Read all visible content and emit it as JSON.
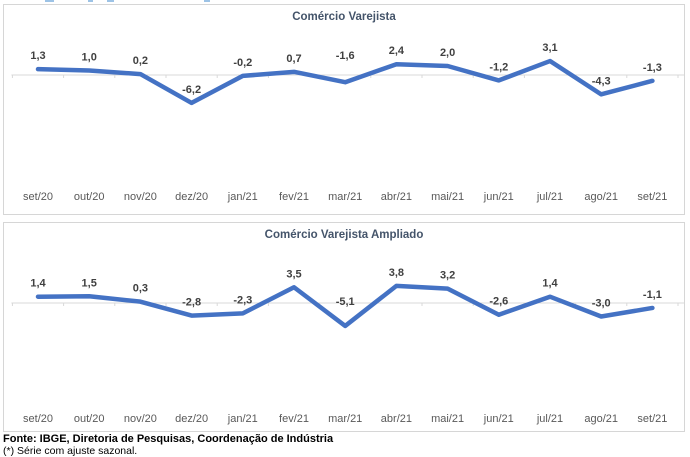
{
  "page": {
    "footer": {
      "source": "Fonte: IBGE, Diretoria de Pesquisas, Coordenação de Indústria",
      "note": "(*) Série com ajuste sazonal."
    }
  },
  "chart_data": [
    {
      "type": "line",
      "title": "Comércio Varejista",
      "categories": [
        "set/20",
        "out/20",
        "nov/20",
        "dez/20",
        "jan/21",
        "fev/21",
        "mar/21",
        "abr/21",
        "mai/21",
        "jun/21",
        "jul/21",
        "ago/21",
        "set/21"
      ],
      "values": [
        1.3,
        1.0,
        0.2,
        -6.2,
        -0.2,
        0.7,
        -1.6,
        2.4,
        2.0,
        -1.2,
        3.1,
        -4.3,
        -1.3
      ],
      "value_labels": [
        "1,3",
        "1,0",
        "0,2",
        "-6,2",
        "-0,2",
        "0,7",
        "-1,6",
        "2,4",
        "2,0",
        "-1,2",
        "3,1",
        "-4,3",
        "-1,3"
      ],
      "ylim": [
        -8,
        4
      ],
      "grid": false,
      "legend": "none",
      "data_labels": "above",
      "label_dy": [
        0,
        0,
        0,
        0,
        0,
        0,
        -13,
        0,
        0,
        0,
        0,
        0,
        0
      ],
      "line_color": "#4472c4",
      "axis_color": "#d9d9d9",
      "label_color": "#404040",
      "tick_label_color": "#595959",
      "title_color": "#44546a"
    },
    {
      "type": "line",
      "title": "Comércio Varejista Ampliado",
      "categories": [
        "set/20",
        "out/20",
        "nov/20",
        "dez/20",
        "jan/21",
        "fev/21",
        "mar/21",
        "abr/21",
        "mai/21",
        "jun/21",
        "jul/21",
        "ago/21",
        "set/21"
      ],
      "values": [
        1.4,
        1.5,
        0.3,
        -2.8,
        -2.3,
        3.5,
        -5.1,
        3.8,
        3.2,
        -2.6,
        1.4,
        -3.0,
        -1.1
      ],
      "value_labels": [
        "1,4",
        "1,5",
        "0,3",
        "-2,8",
        "-2,3",
        "3,5",
        "-5,1",
        "3,8",
        "3,2",
        "-2,6",
        "1,4",
        "-3,0",
        "-1,1"
      ],
      "ylim": [
        -7,
        5
      ],
      "grid": false,
      "legend": "none",
      "data_labels": "above",
      "label_dy": [
        0,
        0,
        0,
        0,
        0,
        0,
        -11,
        0,
        0,
        0,
        0,
        0,
        0
      ],
      "line_color": "#4472c4",
      "axis_color": "#d9d9d9",
      "label_color": "#404040",
      "tick_label_color": "#595959",
      "title_color": "#44546a"
    }
  ]
}
